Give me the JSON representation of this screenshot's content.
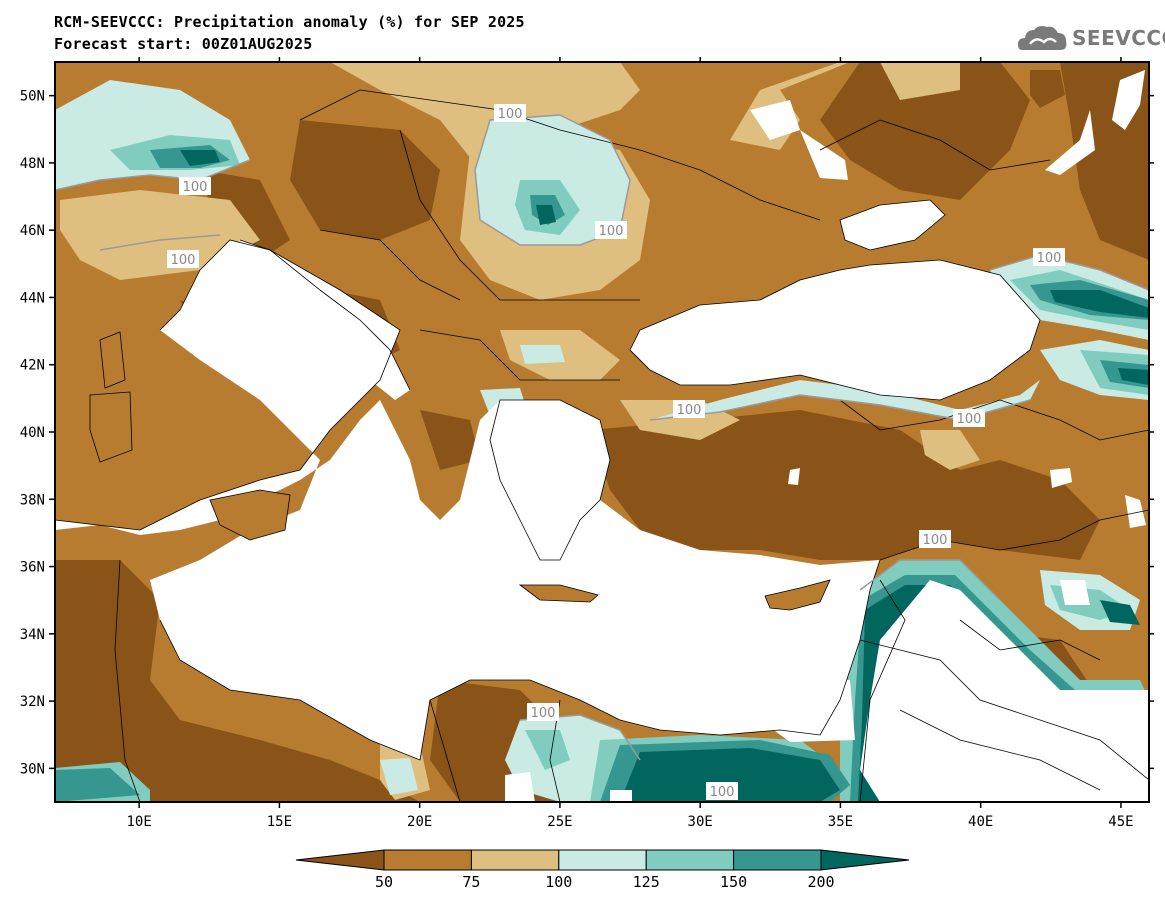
{
  "title_line1": "RCM-SEEVCCC: Precipitation anomaly (%) for SEP 2025",
  "title_line2": "Forecast start: 00Z01AUG2025",
  "logo": {
    "text": "SEEVCCC",
    "icon": "cloud-logo-icon"
  },
  "map": {
    "lon_range": [
      7,
      46
    ],
    "lat_range": [
      29,
      51
    ],
    "lon_ticks": [
      "10E",
      "15E",
      "20E",
      "25E",
      "30E",
      "35E",
      "40E",
      "45E"
    ],
    "lat_ticks": [
      "50N",
      "48N",
      "46N",
      "44N",
      "42N",
      "40N",
      "38N",
      "36N",
      "34N",
      "32N",
      "30N"
    ],
    "contour_labels": [
      "100",
      "100",
      "100",
      "100",
      "100",
      "100",
      "100",
      "100",
      "100",
      "100"
    ]
  },
  "colorbar": {
    "labels": [
      "50",
      "75",
      "100",
      "125",
      "150",
      "200"
    ],
    "colors": [
      "#8a5418",
      "#b87c30",
      "#dfbf7f",
      "#c9ebe4",
      "#80cdc0",
      "#35978f",
      "#01665e"
    ]
  }
}
